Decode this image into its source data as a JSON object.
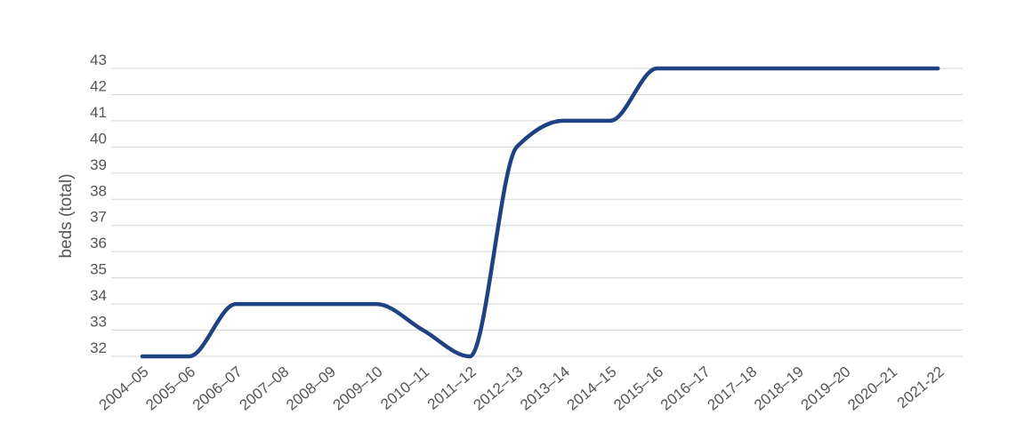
{
  "chart_data": {
    "type": "line",
    "title": "",
    "xlabel": "",
    "ylabel": "beds (total)",
    "categories": [
      "2004–05",
      "2005–06",
      "2006–07",
      "2007–08",
      "2008–09",
      "2009–10",
      "2010–11",
      "2011–12",
      "2012–13",
      "2013–14",
      "2014–15",
      "2015–16",
      "2016–17",
      "2017–18",
      "2018–19",
      "2019–20",
      "2020–21",
      "2021-22"
    ],
    "y_ticks": [
      "32",
      "33",
      "34",
      "35",
      "36",
      "37",
      "38",
      "39",
      "40",
      "41",
      "42",
      "43"
    ],
    "ylim": [
      32,
      43
    ],
    "grid": true,
    "series": [
      {
        "values": [
          32,
          32,
          34,
          34,
          34,
          34,
          33,
          32,
          40,
          41,
          41,
          43,
          43,
          43,
          43,
          43,
          43,
          43
        ]
      }
    ],
    "colors": {
      "line": "#1f4282",
      "grid": "#d6d6d6",
      "text": "#555555"
    }
  }
}
